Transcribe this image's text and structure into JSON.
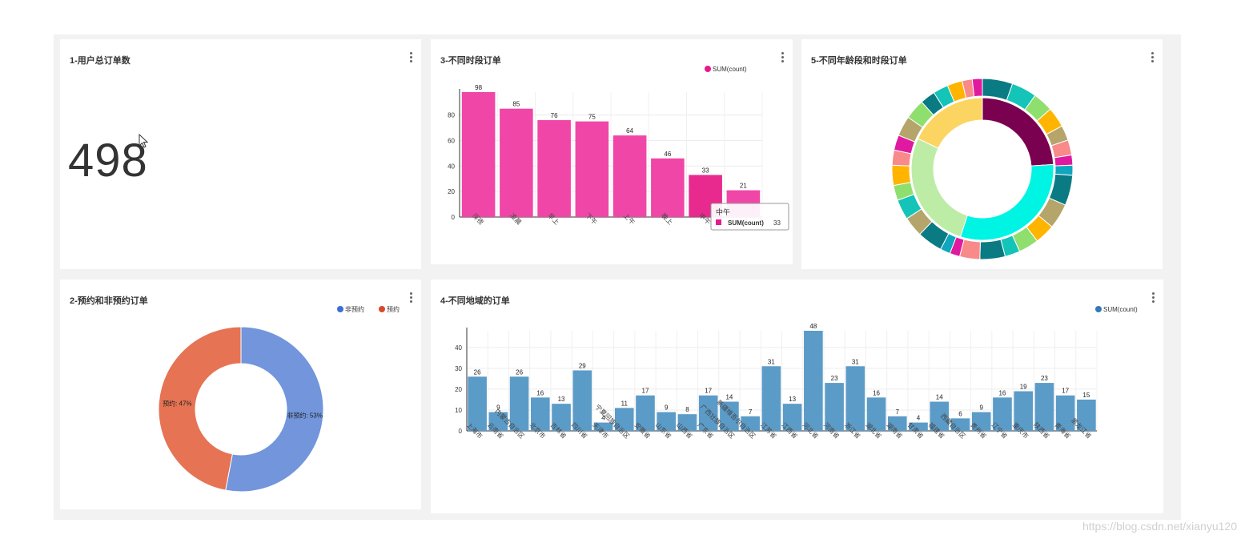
{
  "cards": {
    "total": {
      "title": "1-用户总订单数",
      "value": "498"
    },
    "period": {
      "title": "3-不同时段订单",
      "tooltip": {
        "title": "中午",
        "label": "SUM(count)",
        "value": "33"
      }
    },
    "age": {
      "title": "5-不同年龄段和时段订单"
    },
    "booking": {
      "title": "2-预约和非预约订单"
    },
    "region": {
      "title": "4-不同地域的订单"
    }
  },
  "chart_data": [
    {
      "id": "period",
      "type": "bar",
      "legend": "SUM(count)",
      "categories": [
        "深夜",
        "凌晨",
        "早上",
        "下午",
        "上午",
        "晚上",
        "中午",
        "夜"
      ],
      "values": [
        98,
        85,
        76,
        75,
        64,
        46,
        33,
        21
      ],
      "yticks": [
        0,
        20,
        40,
        60,
        80
      ],
      "ylim": [
        0,
        98
      ],
      "highlight": 6,
      "color": "#f046a8",
      "highlight_color": "#e8298e",
      "grid": true
    },
    {
      "id": "age",
      "type": "pie",
      "inner_ring": [
        {
          "value": 24,
          "color": "#7a0050"
        },
        {
          "value": 31,
          "color": "#00f4e4"
        },
        {
          "value": 27,
          "color": "#bdeca6"
        },
        {
          "value": 18,
          "color": "#fcd462"
        }
      ],
      "outer_colors": [
        "#0a7b83",
        "#14c4b8",
        "#8fdf6e",
        "#ffb400",
        "#b5a56a",
        "#f88a8a",
        "#e01aa0",
        "#0fa6c0",
        "#0a7b83",
        "#b5a56a",
        "#ffb400",
        "#8fdf6e",
        "#14c4b8",
        "#0a7b83",
        "#f88a8a",
        "#e01aa0",
        "#0fa6c0",
        "#0a7b83",
        "#b5a56a",
        "#14c4b8",
        "#8fdf6e",
        "#ffb400",
        "#f88a8a",
        "#e01aa0",
        "#b5a56a",
        "#8fdf6e",
        "#0a7b83",
        "#14c4b8",
        "#ffb400",
        "#f88a8a",
        "#e01aa0"
      ]
    },
    {
      "id": "booking",
      "type": "pie",
      "legend": [
        {
          "name": "非预约",
          "color": "#3b6fd6"
        },
        {
          "name": "预约",
          "color": "#d94a2a"
        }
      ],
      "slices": [
        {
          "label": "非预约: 53%",
          "value": 53,
          "color": "#7295dc"
        },
        {
          "label": "预约: 47%",
          "value": 47,
          "color": "#e67353"
        }
      ]
    },
    {
      "id": "region",
      "type": "bar",
      "legend": "SUM(count)",
      "categories": [
        "上海市",
        "云南省",
        "内蒙古自治区",
        "北京市",
        "吉林省",
        "四川省",
        "天津市",
        "宁夏回族自治区",
        "安徽省",
        "山东省",
        "山西省",
        "广东省",
        "广西壮族自治区",
        "新疆维吾尔自治区",
        "江苏省",
        "江西省",
        "河北省",
        "河南省",
        "浙江省",
        "湖北省",
        "湖南省",
        "甘肃省",
        "福建省",
        "西藏自治区",
        "贵州省",
        "辽宁省",
        "重庆市",
        "陕西省",
        "青海省",
        "黑龙江省"
      ],
      "values": [
        26,
        9,
        26,
        16,
        13,
        29,
        4,
        11,
        17,
        9,
        8,
        17,
        14,
        7,
        31,
        13,
        48,
        23,
        31,
        16,
        7,
        4,
        14,
        6,
        9,
        16,
        19,
        23,
        17,
        15
      ],
      "yticks": [
        0,
        10,
        20,
        30,
        40
      ],
      "ylim": [
        0,
        48
      ],
      "color": "#5b9bc8",
      "grid": true
    }
  ],
  "watermark": "https://blog.csdn.net/xianyu120"
}
